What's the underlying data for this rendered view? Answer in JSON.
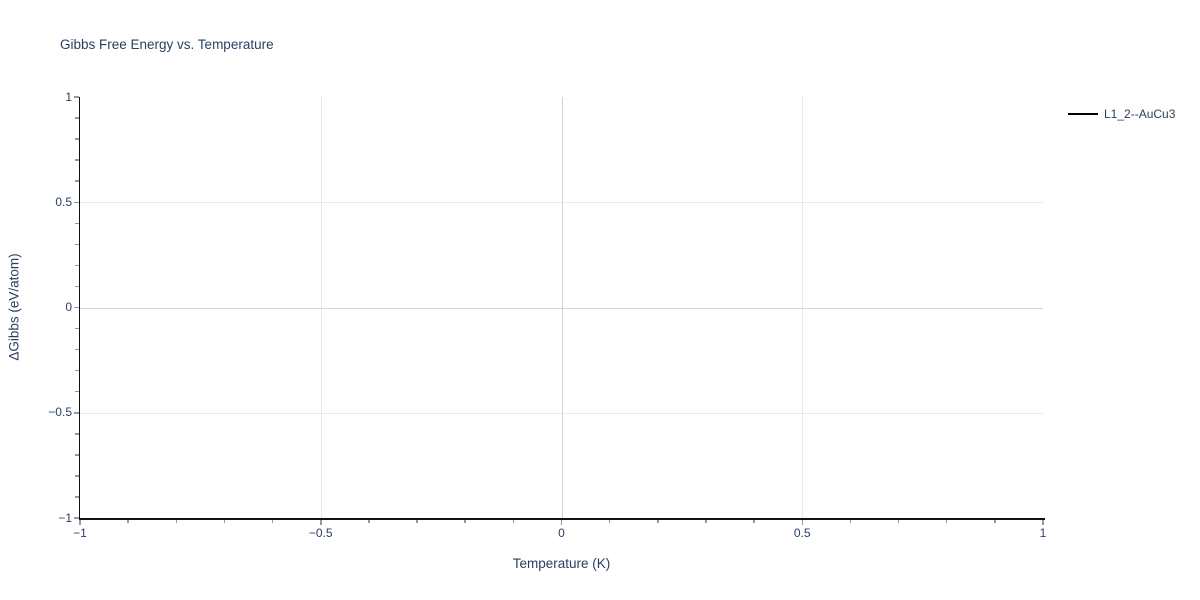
{
  "chart_data": {
    "type": "line",
    "title": "Gibbs Free Energy vs. Temperature",
    "xlabel": "Temperature (K)",
    "ylabel": "ΔGibbs (eV/atom)",
    "xlim": [
      -1,
      1
    ],
    "ylim": [
      -1,
      1
    ],
    "grid": true,
    "gridlines_x": [
      -0.5,
      0,
      0.5
    ],
    "gridlines_y": [
      -0.5,
      0,
      0.5
    ],
    "zeroline": true,
    "minor_tick_step": 0.1,
    "x_ticks": [
      {
        "value": -1,
        "label": "−1"
      },
      {
        "value": -0.5,
        "label": "−0.5"
      },
      {
        "value": 0,
        "label": "0"
      },
      {
        "value": 0.5,
        "label": "0.5"
      },
      {
        "value": 1,
        "label": "1"
      }
    ],
    "y_ticks": [
      {
        "value": 1,
        "label": "1"
      },
      {
        "value": 0.5,
        "label": "0.5"
      },
      {
        "value": 0,
        "label": "0"
      },
      {
        "value": -0.5,
        "label": "−0.5"
      },
      {
        "value": -1,
        "label": "−1"
      }
    ],
    "legend_position": "top-right",
    "series": [
      {
        "name": "L1_2--AuCu3",
        "color": "#000000",
        "x": [],
        "y": []
      }
    ],
    "colors": {
      "background": "#ffffff",
      "text": "#2a3f5f",
      "axis_line": "#111111",
      "tick": "#999999",
      "grid": "#e9e9e9",
      "zeroline": "#d3d3d3"
    }
  }
}
